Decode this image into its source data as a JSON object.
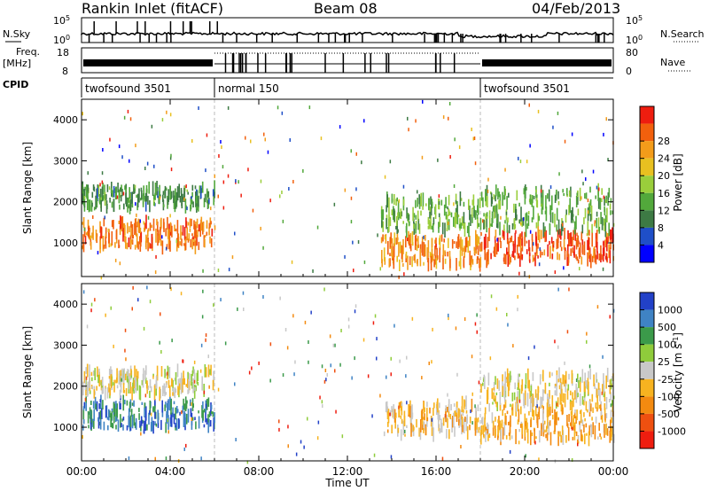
{
  "header": {
    "title": "Rankin Inlet (fitACF)",
    "beam": "Beam 08",
    "date": "04/Feb/2013"
  },
  "noise_panel": {
    "left_label": "N.Sky",
    "right_label": "N.Search",
    "left_ticks": [
      "10^5",
      "10^0"
    ],
    "right_ticks": [
      "10^5",
      "10^0"
    ]
  },
  "freq_panel": {
    "left_label_1": "Freq.",
    "left_label_2": "[MHz]",
    "left_ticks": [
      "18",
      "8"
    ],
    "right_label": "Nave",
    "right_ticks": [
      "80",
      "0"
    ]
  },
  "cpid": {
    "label": "CPID",
    "segments": [
      {
        "name": "twofsound 3501",
        "start_hour": 0,
        "end_hour": 6
      },
      {
        "name": "normal 150",
        "start_hour": 6,
        "end_hour": 18
      },
      {
        "name": "twofsound 3501",
        "start_hour": 18,
        "end_hour": 24
      }
    ]
  },
  "x_axis": {
    "label": "Time UT",
    "ticks": [
      "00:00",
      "04:00",
      "08:00",
      "12:00",
      "16:00",
      "20:00",
      "00:00"
    ]
  },
  "colors": {
    "power": [
      "#0000ff",
      "#1f4fc8",
      "#3d7a44",
      "#52a83b",
      "#9ace3b",
      "#e8c020",
      "#f39c1a",
      "#f2600d",
      "#ee1d0f"
    ],
    "velocity": [
      "#2241c8",
      "#3f83c4",
      "#3b9a4a",
      "#8fcc3b",
      "#c8c8c8",
      "#f7b320",
      "#f38a10",
      "#ef5010",
      "#ee1d0f"
    ]
  },
  "chart_data": [
    {
      "type": "heatmap",
      "title": "",
      "xlabel": "Time UT",
      "ylabel": "Slant Range [km]",
      "xlim_hours": [
        0,
        24
      ],
      "ylim": [
        180,
        4500
      ],
      "yticks": [
        1000,
        2000,
        3000,
        4000
      ],
      "colorbar": {
        "label": "Power [dB]",
        "ticks": [
          "4",
          "8",
          "12",
          "16",
          "20",
          "24",
          "28"
        ],
        "range": [
          0,
          30
        ]
      },
      "features": [
        {
          "start_hour": 0.0,
          "end_hour": 6.0,
          "center_km": 1200,
          "half_width_km": 320,
          "value": 24
        },
        {
          "start_hour": 0.0,
          "end_hour": 6.0,
          "center_km": 2100,
          "half_width_km": 260,
          "value": 10
        },
        {
          "start_hour": 13.5,
          "end_hour": 18.0,
          "center_km": 800,
          "half_width_km": 350,
          "value": 22
        },
        {
          "start_hour": 13.5,
          "end_hour": 18.0,
          "center_km": 1700,
          "half_width_km": 400,
          "value": 12
        },
        {
          "start_hour": 18.0,
          "end_hour": 24.0,
          "center_km": 900,
          "half_width_km": 350,
          "value": 26
        },
        {
          "start_hour": 18.0,
          "end_hour": 24.0,
          "center_km": 1800,
          "half_width_km": 500,
          "value": 12
        }
      ]
    },
    {
      "type": "heatmap",
      "title": "",
      "xlabel": "Time UT",
      "ylabel": "Slant Range [km]",
      "xlim_hours": [
        0,
        24
      ],
      "ylim": [
        180,
        4500
      ],
      "yticks": [
        1000,
        2000,
        3000,
        4000
      ],
      "colorbar": {
        "label": "Velocity [m s^-1]",
        "ticks": [
          "1000",
          "500",
          "100",
          "25",
          "-25",
          "-100",
          "-500",
          "-1000"
        ],
        "range": [
          -1000,
          1000
        ]
      },
      "features": [
        {
          "start_hour": 0.0,
          "end_hour": 6.0,
          "center_km": 1300,
          "half_width_km": 320,
          "value": 600
        },
        {
          "start_hour": 0.0,
          "end_hour": 6.0,
          "center_km": 2100,
          "half_width_km": 300,
          "value": 0
        },
        {
          "start_hour": 13.5,
          "end_hour": 18.0,
          "center_km": 1200,
          "half_width_km": 400,
          "value": -200
        },
        {
          "start_hour": 18.0,
          "end_hour": 24.0,
          "center_km": 1100,
          "half_width_km": 400,
          "value": -300
        },
        {
          "start_hour": 18.0,
          "end_hour": 24.0,
          "center_km": 1900,
          "half_width_km": 400,
          "value": -50
        }
      ]
    }
  ]
}
